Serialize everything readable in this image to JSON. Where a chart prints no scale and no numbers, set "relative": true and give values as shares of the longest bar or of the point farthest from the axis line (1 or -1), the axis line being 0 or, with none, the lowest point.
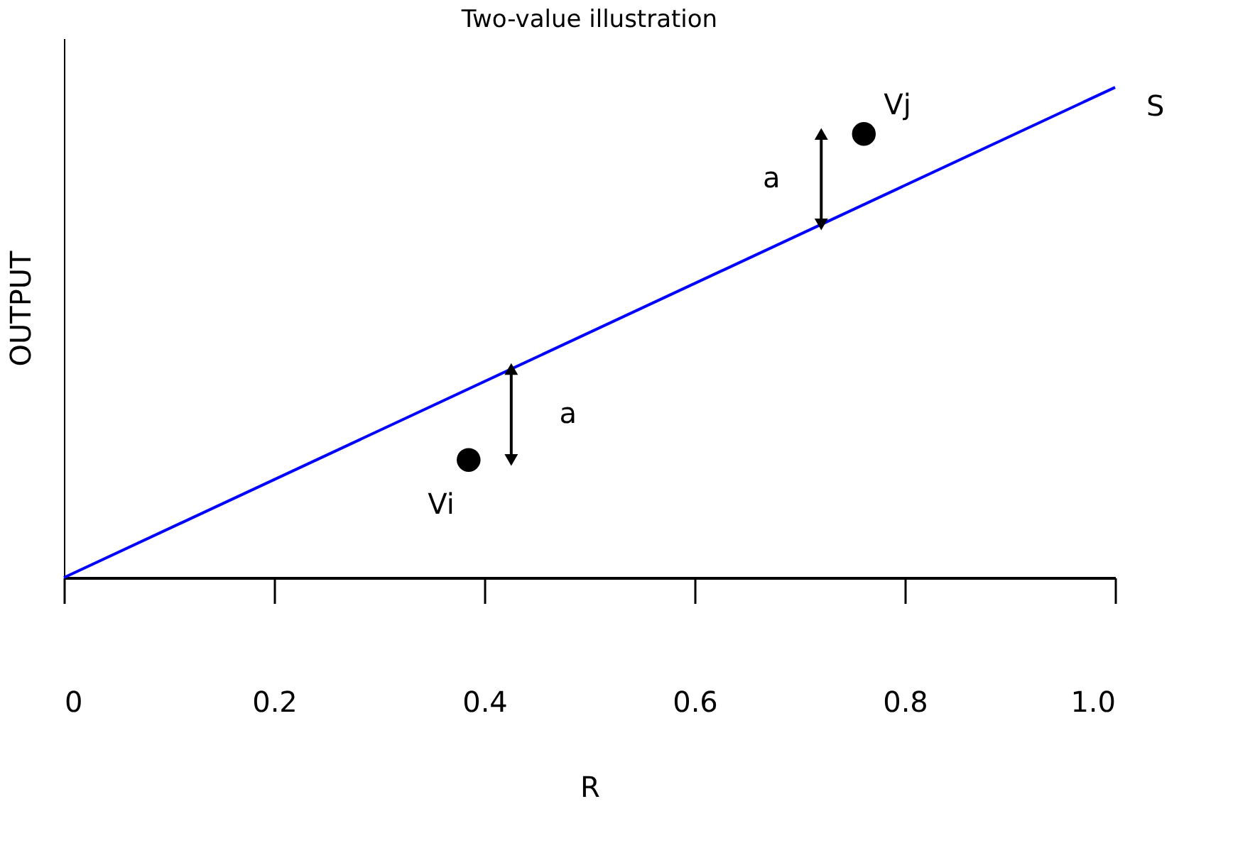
{
  "chart_data": {
    "type": "line",
    "title": "Two-value illustration",
    "xlabel": "R",
    "ylabel": "OUTPUT",
    "relative": true,
    "xlim": [
      0,
      1.0
    ],
    "xticks": [
      0,
      0.2,
      0.4,
      {
        "value": 0.6,
        "label": "0.6"
      },
      0.8,
      {
        "value": 1.0,
        "label": "1.0"
      }
    ],
    "series": [
      {
        "name": "S",
        "color": "#0000ff",
        "x": [
          0,
          1.0
        ],
        "values": [
          0,
          1
        ],
        "marker": "none"
      },
      {
        "name": "Vi",
        "type": "scatter",
        "color": "#000000",
        "x": [
          0.385
        ],
        "values": [
          0.24
        ],
        "marker": "circle"
      },
      {
        "name": "Vj",
        "type": "scatter",
        "color": "#000000",
        "x": [
          0.761
        ],
        "values": [
          0.905
        ],
        "marker": "circle"
      }
    ],
    "annotations": [
      "a",
      "a"
    ]
  }
}
